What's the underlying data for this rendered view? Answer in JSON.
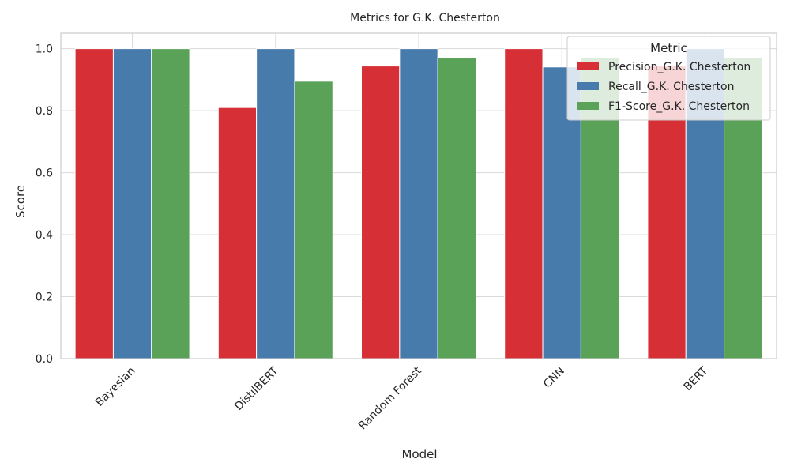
{
  "chart_data": {
    "type": "bar",
    "title": "Metrics for G.K. Chesterton",
    "xlabel": "Model",
    "ylabel": "Score",
    "categories": [
      "Bayesian",
      "DistilBERT",
      "Random Forest",
      "CNN",
      "BERT"
    ],
    "series": [
      {
        "name": "Precision_G.K. Chesterton",
        "color": "#d62f35",
        "values": [
          1.0,
          0.81,
          0.944,
          1.0,
          0.944
        ]
      },
      {
        "name": "Recall_G.K. Chesterton",
        "color": "#467bab",
        "values": [
          1.0,
          1.0,
          1.0,
          0.941,
          1.0
        ]
      },
      {
        "name": "F1-Score_G.K. Chesterton",
        "color": "#5aa258",
        "values": [
          1.0,
          0.895,
          0.971,
          0.97,
          0.971
        ]
      }
    ],
    "ylim": [
      0,
      1.05
    ],
    "yticks": [
      "0.0",
      "0.2",
      "0.4",
      "0.6",
      "0.8",
      "1.0"
    ],
    "grid": true,
    "legend": {
      "title": "Metric",
      "position": "top-right"
    }
  }
}
